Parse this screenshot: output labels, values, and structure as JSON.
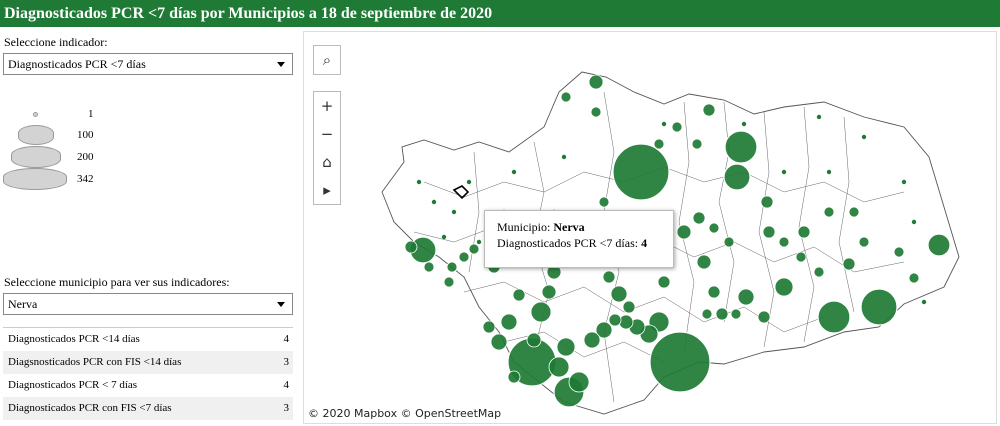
{
  "header": {
    "title": "Diagnosticados PCR <7 días por Municipios a 18 de septiembre de 2020"
  },
  "indicator_selector": {
    "label": "Seleccione indicador:",
    "value": "Diagnosticados PCR <7 días"
  },
  "size_legend": [
    {
      "value": "1"
    },
    {
      "value": "100"
    },
    {
      "value": "200"
    },
    {
      "value": "342"
    }
  ],
  "municipio_selector": {
    "label": "Seleccione municipio para ver sus indicadores:",
    "value": "Nerva"
  },
  "indicators": [
    {
      "name": "Diagnosticados PCR <14 días",
      "value": "4"
    },
    {
      "name": "Diagsnosticados PCR con FIS <14 días",
      "value": "3"
    },
    {
      "name": "Diagnosticados PCR < 7 días",
      "value": "4"
    },
    {
      "name": "Diagnosticados PCR con FIS <7 días",
      "value": "3"
    }
  ],
  "map": {
    "attribution": "© 2020 Mapbox  © OpenStreetMap",
    "bubble_color": "#1e7a34",
    "tooltip": {
      "municipio_label": "Municipio:",
      "municipio_value": "Nerva",
      "metric_label": "Diagnosticados PCR <7 días:",
      "metric_value": "4"
    }
  }
}
